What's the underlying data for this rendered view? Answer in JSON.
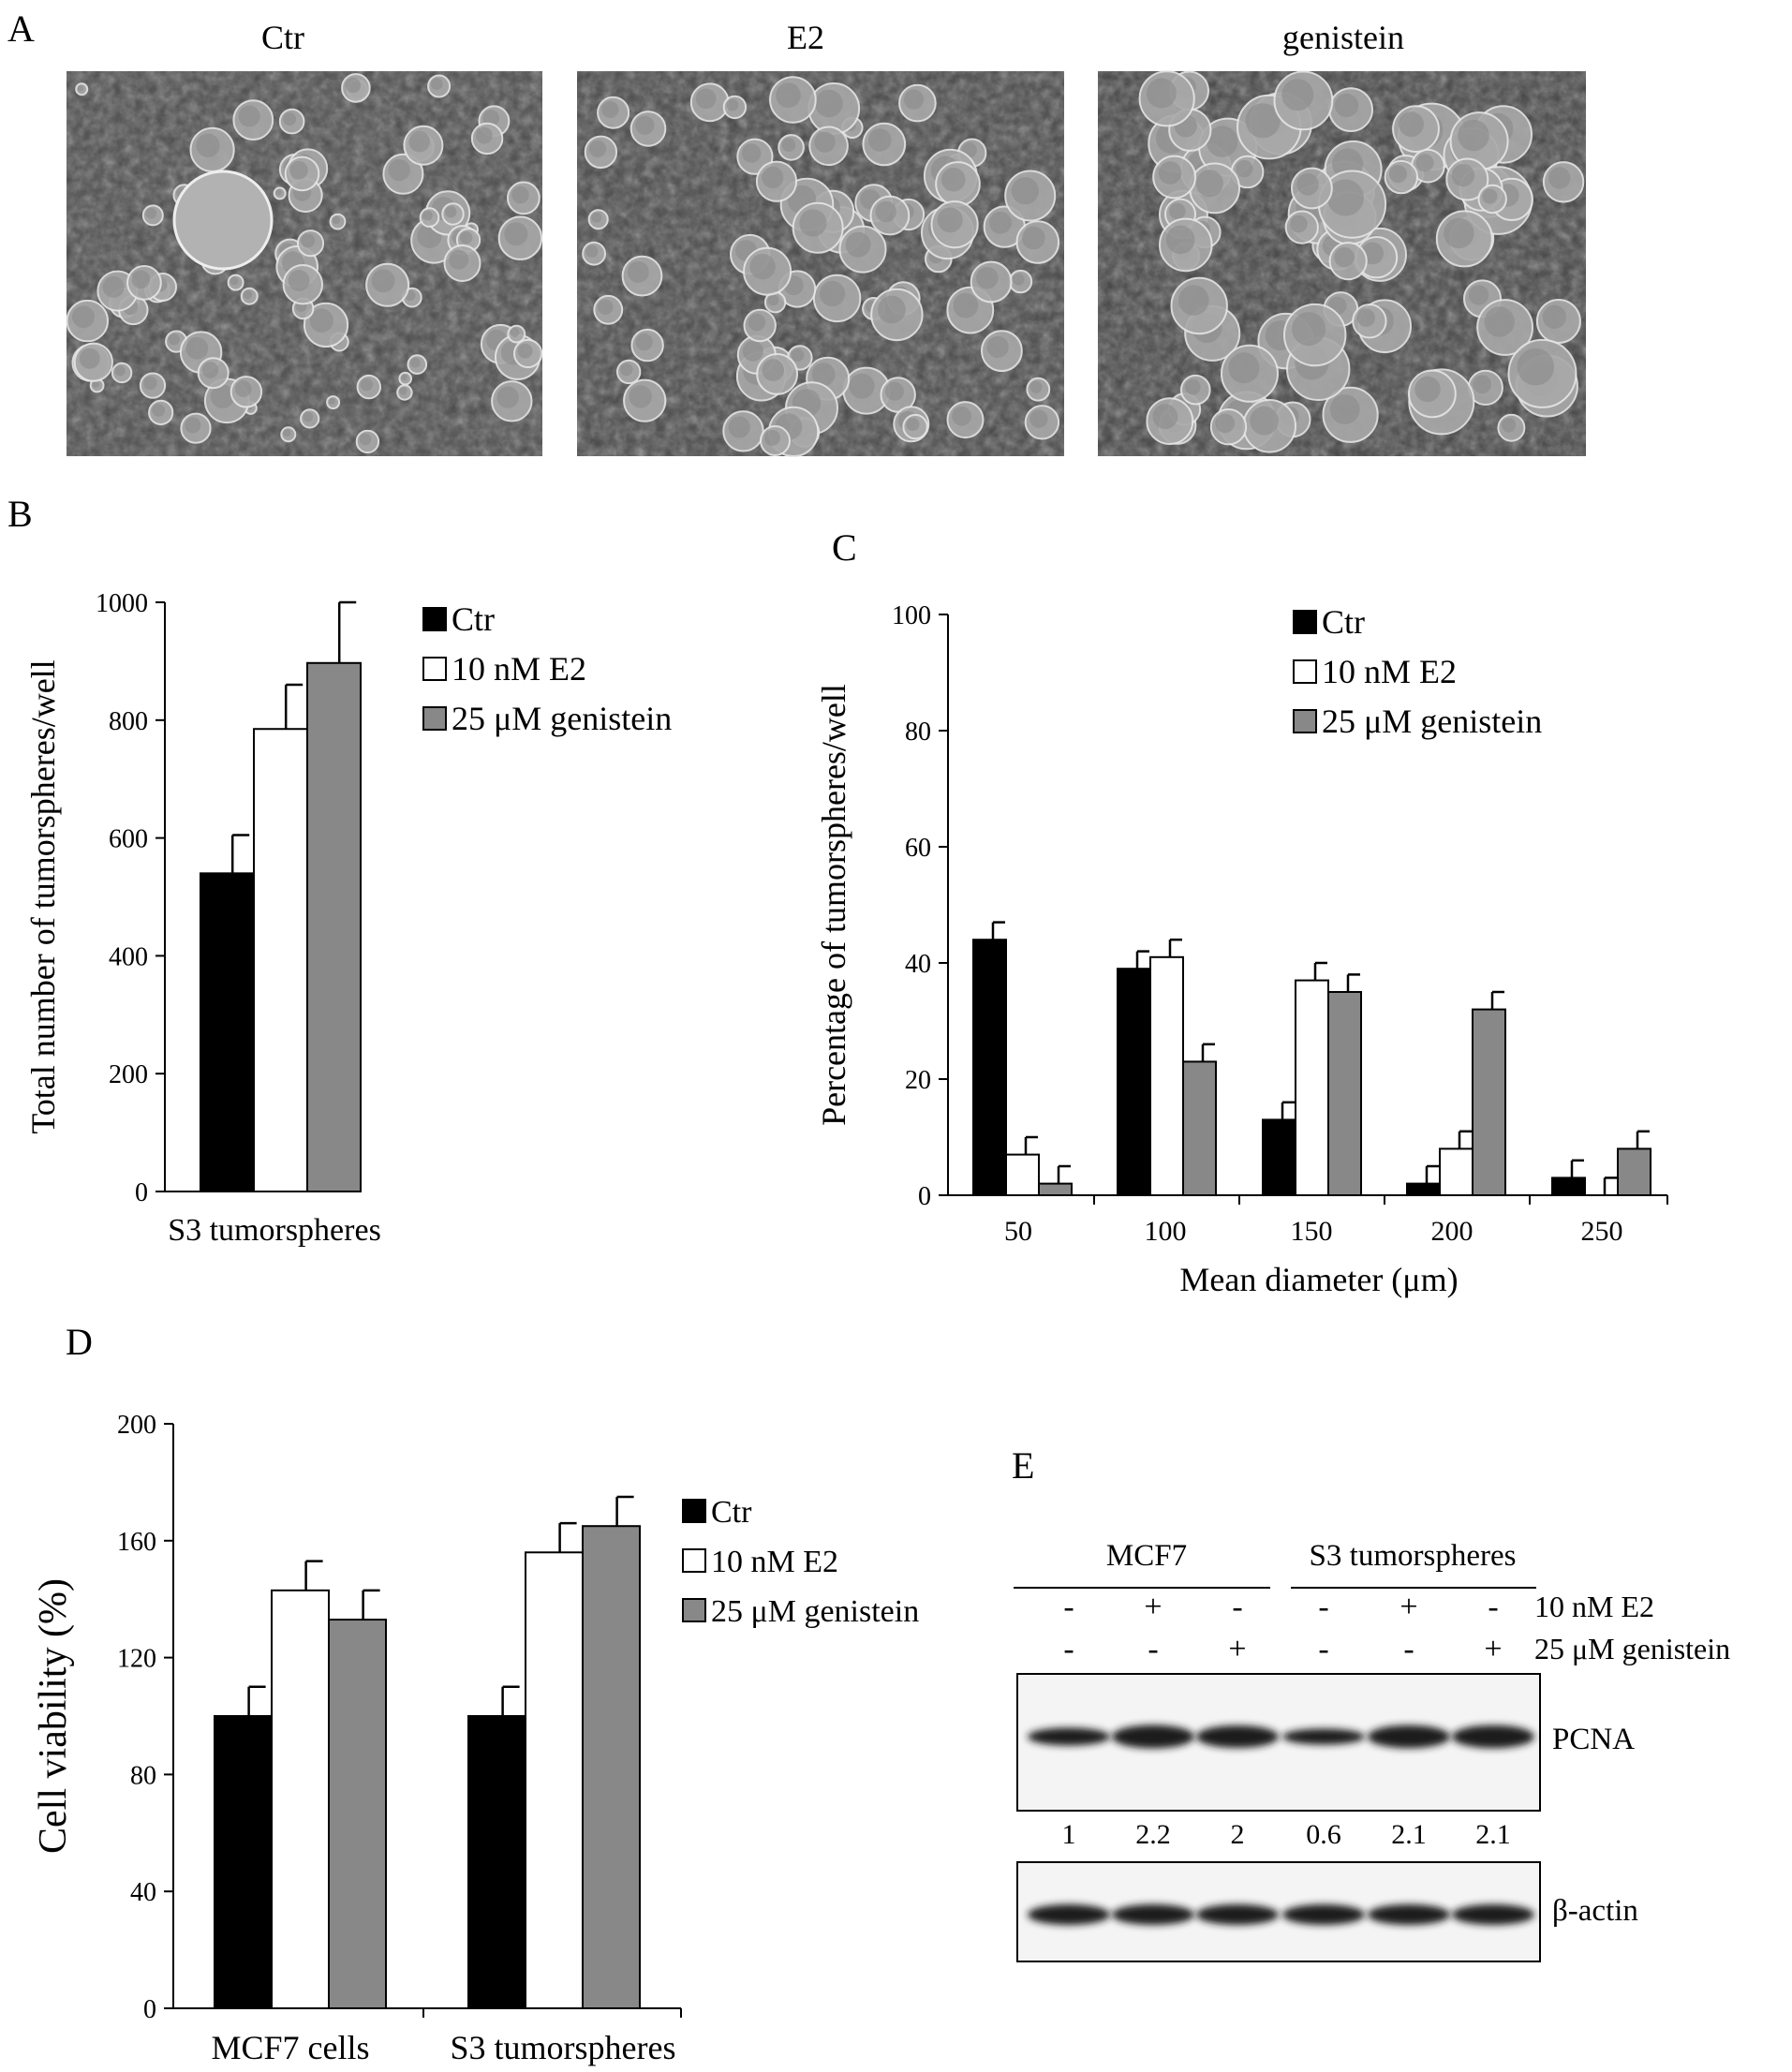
{
  "panels": {
    "A": {
      "letter": "A",
      "images": [
        {
          "label": "Ctr"
        },
        {
          "label": "E2"
        },
        {
          "label": "genistein"
        }
      ]
    },
    "B": {
      "letter": "B"
    },
    "C": {
      "letter": "C"
    },
    "D": {
      "letter": "D"
    },
    "E": {
      "letter": "E",
      "groups": [
        "MCF7",
        "S3 tumorspheres"
      ],
      "rows": [
        {
          "label": "10 nM E2",
          "signs": [
            "-",
            "+",
            "-",
            "-",
            "+",
            "-"
          ]
        },
        {
          "label": "25 μM genistein",
          "signs": [
            "-",
            "-",
            "+",
            "-",
            "-",
            "+"
          ]
        }
      ],
      "bands": [
        {
          "label": "PCNA",
          "values": [
            "1",
            "2.2",
            "2",
            "0.6",
            "2.1",
            "2.1"
          ]
        },
        {
          "label": "β-actin",
          "values": []
        }
      ]
    }
  },
  "colors": {
    "ctr": "#000000",
    "e2": "#ffffff",
    "genistein": "#888888"
  },
  "chart_data": [
    {
      "panel": "B",
      "type": "bar",
      "categories": [
        "S3 tumorspheres"
      ],
      "series": [
        {
          "name": "Ctr",
          "values": [
            540
          ],
          "errors": [
            65
          ]
        },
        {
          "name": "10 nM E2",
          "values": [
            785
          ],
          "errors": [
            75
          ]
        },
        {
          "name": "25 μM genistein",
          "values": [
            897
          ],
          "errors": [
            103
          ]
        }
      ],
      "ylabel": "Total number of tumorspheres/well",
      "ylim": [
        0,
        1000
      ],
      "yticks": [
        0,
        200,
        400,
        600,
        800,
        1000
      ],
      "legend": "top-right"
    },
    {
      "panel": "C",
      "type": "bar",
      "categories": [
        "50",
        "100",
        "150",
        "200",
        "250"
      ],
      "series": [
        {
          "name": "Ctr",
          "values": [
            44,
            39,
            13,
            2,
            3
          ],
          "errors": [
            3,
            3,
            3,
            3,
            3
          ]
        },
        {
          "name": "10 nM E2",
          "values": [
            7,
            41,
            37,
            8,
            0
          ],
          "errors": [
            3,
            3,
            3,
            3,
            3
          ]
        },
        {
          "name": "25 μM genistein",
          "values": [
            2,
            23,
            35,
            32,
            8
          ],
          "errors": [
            3,
            3,
            3,
            3,
            3
          ]
        }
      ],
      "xlabel": "Mean diameter (μm)",
      "ylabel": "Percentage of tumorspheres/well",
      "ylim": [
        0,
        100
      ],
      "yticks": [
        0,
        20,
        40,
        60,
        80,
        100
      ],
      "legend": "top-right"
    },
    {
      "panel": "D",
      "type": "bar",
      "categories": [
        "MCF7 cells",
        "S3 tumorspheres"
      ],
      "series": [
        {
          "name": "Ctr",
          "values": [
            100,
            100
          ],
          "errors": [
            10,
            10
          ]
        },
        {
          "name": "10 nM E2",
          "values": [
            143,
            156
          ],
          "errors": [
            10,
            10
          ]
        },
        {
          "name": "25 μM genistein",
          "values": [
            133,
            165
          ],
          "errors": [
            10,
            10
          ]
        }
      ],
      "ylabel": "Cell viability (%)",
      "ylim": [
        0,
        200
      ],
      "yticks": [
        0,
        40,
        80,
        120,
        160,
        200
      ],
      "legend": "right"
    }
  ]
}
